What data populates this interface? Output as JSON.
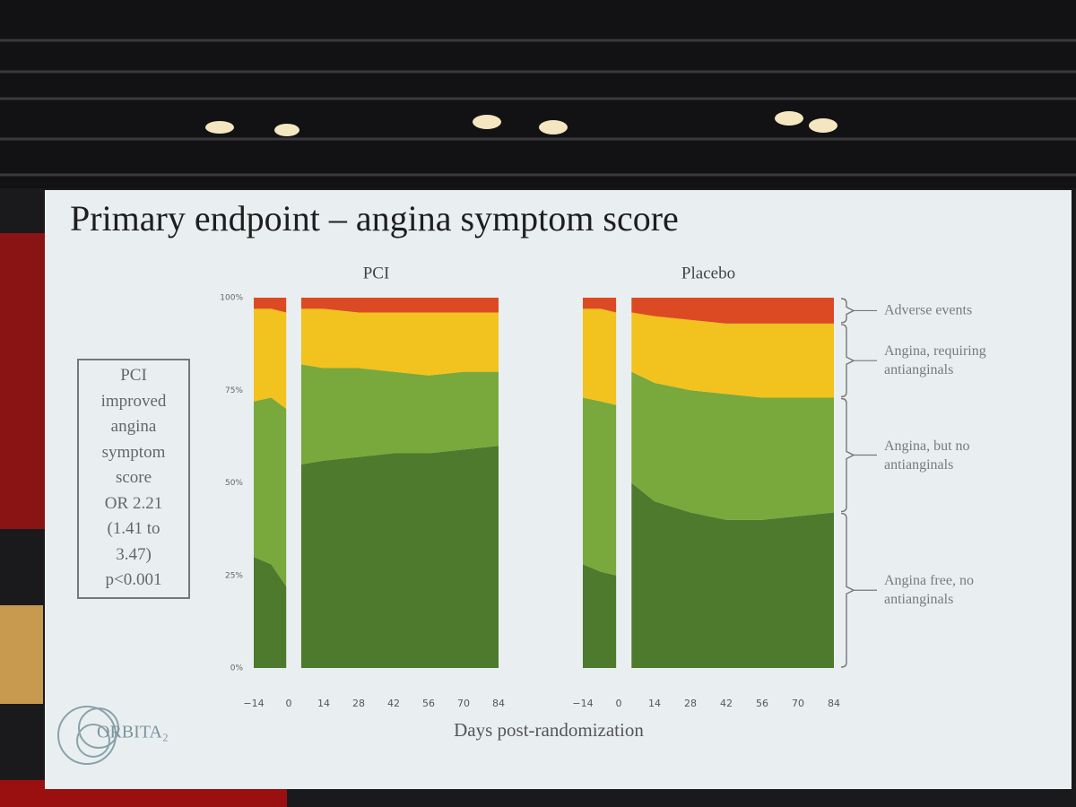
{
  "title": "Primary endpoint – angina symptom score",
  "x_label": "Days post-randomization",
  "note_box": [
    "PCI",
    "improved",
    "angina",
    "symptom",
    "score",
    "OR 2.21",
    "(1.41 to",
    "3.47)",
    "p<0.001"
  ],
  "logo": "ORBITA₂",
  "chart_data": [
    {
      "type": "area",
      "stacked": true,
      "title": "PCI",
      "x": [
        -14,
        -7,
        -1,
        2,
        5,
        14,
        28,
        42,
        56,
        70,
        84
      ],
      "xlim": [
        -14,
        84
      ],
      "xticks": [
        {
          "value": -14,
          "label": "−14"
        },
        0,
        14,
        28,
        42,
        56,
        70,
        84
      ],
      "ylim": [
        0,
        100
      ],
      "yticks": [
        {
          "value": 0,
          "label": "0%"
        },
        {
          "value": 25,
          "label": "25%"
        },
        {
          "value": 50,
          "label": "50%"
        },
        {
          "value": 75,
          "label": "75%"
        },
        {
          "value": 100,
          "label": "100%"
        }
      ],
      "series": [
        {
          "color": "#4d7a2c",
          "values": [
            30,
            28,
            22,
            null,
            55,
            56,
            57,
            58,
            58,
            59,
            60
          ]
        },
        {
          "color": "#79a83c",
          "values": [
            42,
            45,
            48,
            null,
            27,
            25,
            24,
            22,
            21,
            21,
            20
          ]
        },
        {
          "color": "#f2c21e",
          "values": [
            25,
            24,
            26,
            null,
            15,
            16,
            15,
            16,
            17,
            16,
            16
          ]
        },
        {
          "color": "#dc4a24",
          "values": [
            3,
            3,
            4,
            null,
            3,
            3,
            4,
            4,
            4,
            4,
            4
          ]
        }
      ]
    },
    {
      "type": "area",
      "stacked": true,
      "title": "Placebo",
      "legend": "right",
      "x": [
        -14,
        -7,
        -1,
        2,
        5,
        14,
        28,
        42,
        56,
        70,
        84
      ],
      "xlim": [
        -14,
        84
      ],
      "xticks": [
        {
          "value": -14,
          "label": "−14"
        },
        0,
        14,
        28,
        42,
        56,
        70,
        84
      ],
      "ylim": [
        0,
        100
      ],
      "series": [
        {
          "name": "Angina free, no antianginals",
          "color": "#4d7a2c",
          "values": [
            28,
            26,
            25,
            null,
            50,
            45,
            42,
            40,
            40,
            41,
            42
          ]
        },
        {
          "name": "Angina, but no antianginals",
          "color": "#79a83c",
          "values": [
            45,
            46,
            46,
            null,
            30,
            32,
            33,
            34,
            33,
            32,
            31
          ]
        },
        {
          "name": "Angina, requiring antianginals",
          "color": "#f2c21e",
          "values": [
            24,
            25,
            25,
            null,
            16,
            18,
            19,
            19,
            20,
            20,
            20
          ]
        },
        {
          "name": "Adverse events",
          "color": "#dc4a24",
          "values": [
            3,
            3,
            4,
            null,
            4,
            5,
            6,
            7,
            7,
            7,
            7
          ]
        }
      ]
    }
  ]
}
